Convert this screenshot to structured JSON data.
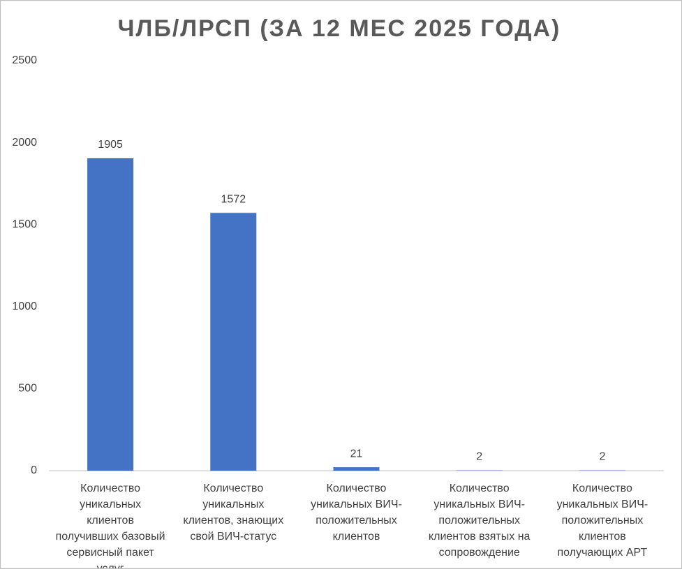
{
  "chart_data": {
    "type": "bar",
    "title": "ЧЛБ/ЛРСП (ЗА 12 МЕС 2025 ГОДА)",
    "categories": [
      "Количество уникальных клиентов получивших базовый сервисный пакет услуг",
      "Количество уникальных клиентов, знающих свой ВИЧ-статус",
      "Количество уникальных ВИЧ-положительных клиентов",
      "Количество уникальных ВИЧ-положительных клиентов взятых на сопровождение",
      "Количество уникальных ВИЧ-положительных клиентов получающих АРТ"
    ],
    "values": [
      1905,
      1572,
      21,
      2,
      2
    ],
    "color": "#4472c4",
    "ylim": [
      0,
      2500
    ],
    "yticks": [
      0,
      500,
      1000,
      1500,
      2000,
      2500
    ],
    "grid": false
  }
}
